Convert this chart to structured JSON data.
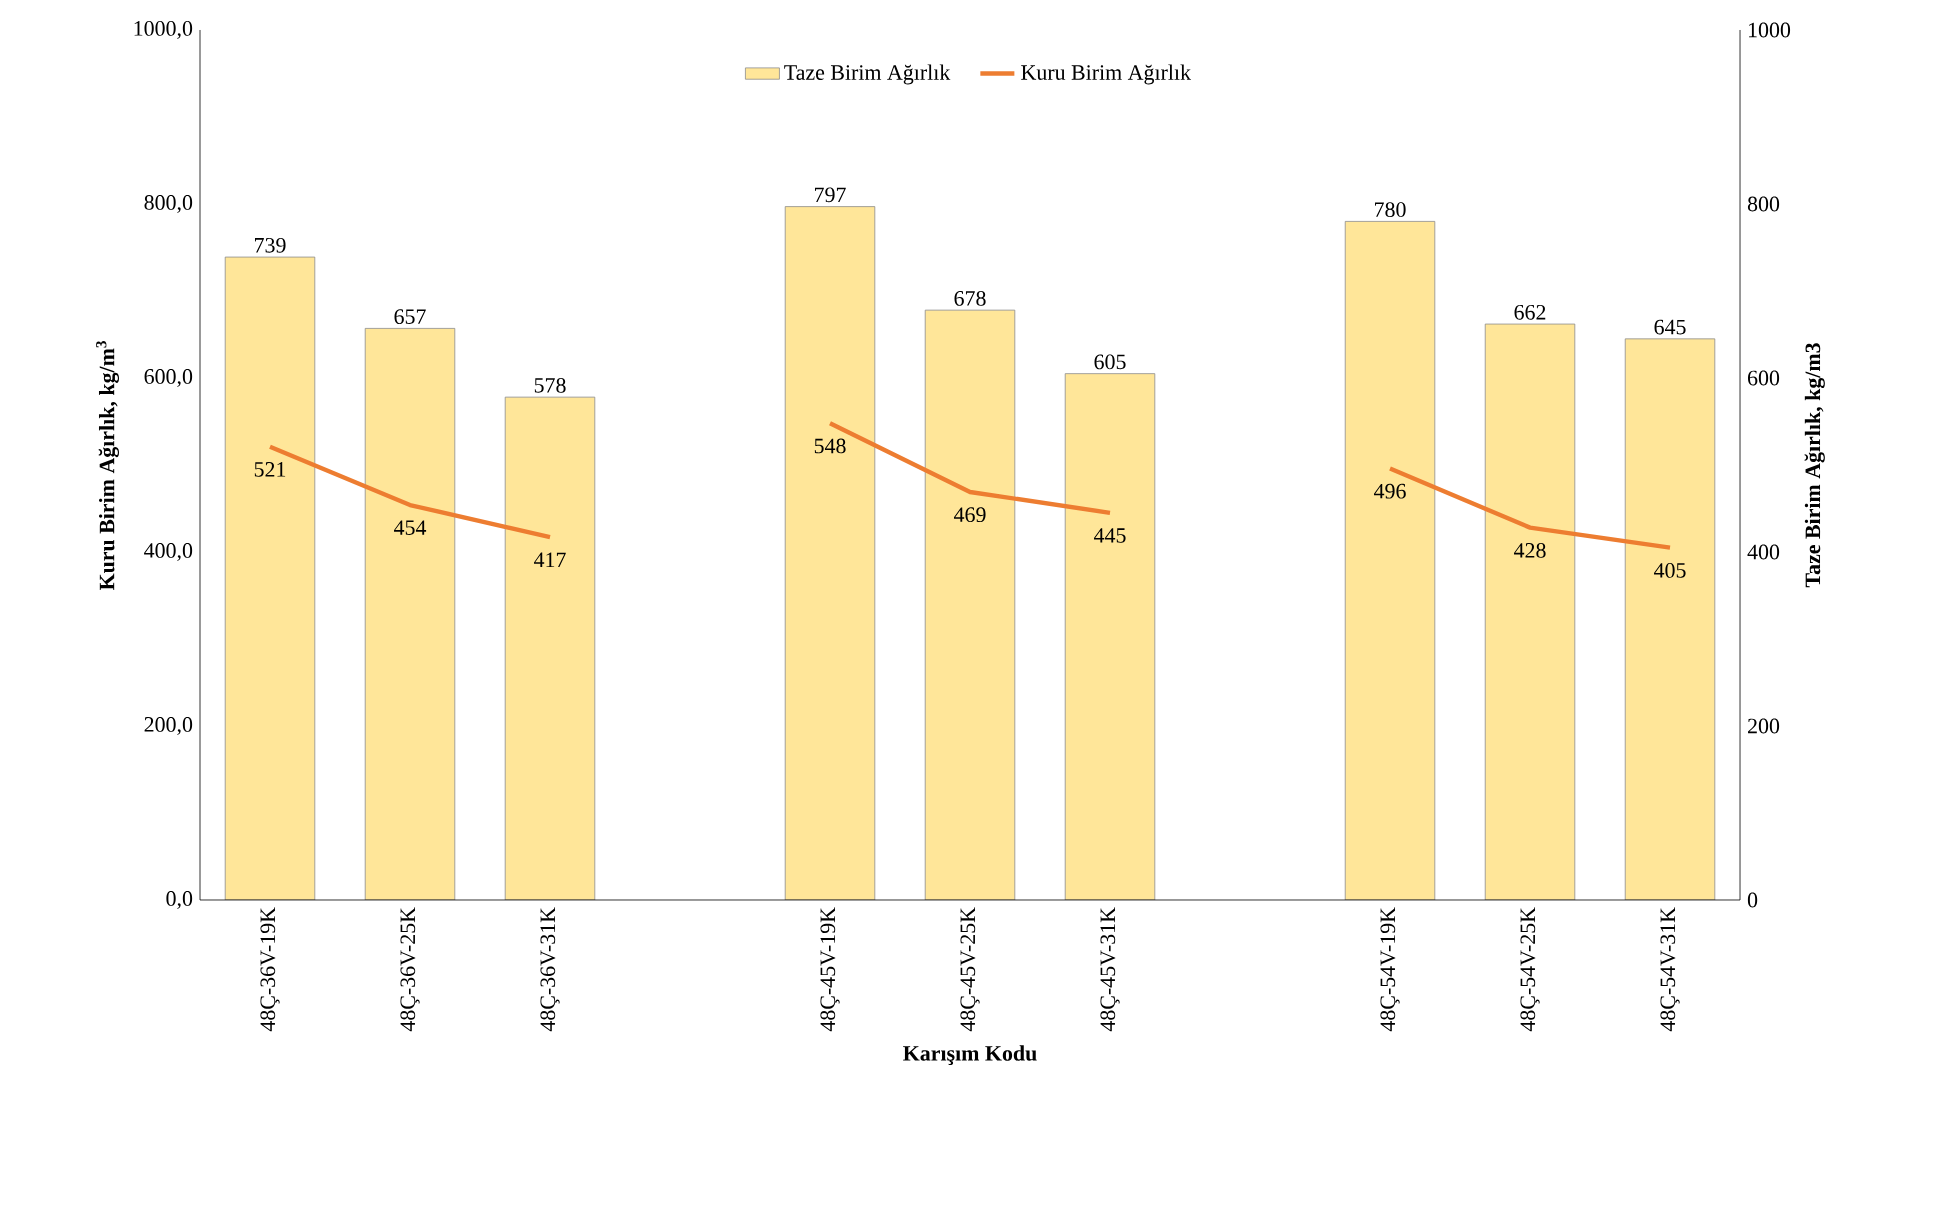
{
  "chart_data": {
    "type": "bar",
    "categories": [
      "48Ç-36V-19K",
      "48Ç-36V-25K",
      "48Ç-36V-31K",
      null,
      "48Ç-45V-19K",
      "48Ç-45V-25K",
      "48Ç-45V-31K",
      null,
      "48Ç-54V-19K",
      "48Ç-54V-25K",
      "48Ç-54V-31K"
    ],
    "series": [
      {
        "name": "Taze Birim Ağırlık",
        "axis": "y2",
        "color": "#ffe699",
        "values": [
          739,
          657,
          578,
          null,
          797,
          678,
          605,
          null,
          780,
          662,
          645
        ]
      },
      {
        "name": "Kuru Birim Ağırlık",
        "type": "line",
        "axis": "y",
        "color": "#ed7d31",
        "line_style": "solid",
        "values": [
          521,
          454,
          417,
          null,
          548,
          469,
          445,
          null,
          496,
          428,
          405
        ]
      }
    ],
    "xlabel": "Karışım Kodu",
    "ylabel": "Kuru Birim Ağırlık, kg/m$^{3}$",
    "y2label": "Taze Birim Ağırlık, kg/m3",
    "ylim": [
      0,
      1000
    ],
    "yticks": [
      {
        "value": 0,
        "label": "0,0"
      },
      {
        "value": 200,
        "label": "200,0"
      },
      {
        "value": 400,
        "label": "400,0"
      },
      {
        "value": 600,
        "label": "600,0"
      },
      {
        "value": 800,
        "label": "800,0"
      },
      {
        "value": 1000,
        "label": "1000,0"
      }
    ],
    "y2lim": [
      0,
      1000
    ],
    "y2ticks": [
      0,
      200,
      400,
      600,
      800,
      1000
    ],
    "data_labels": true,
    "legend": "top"
  }
}
